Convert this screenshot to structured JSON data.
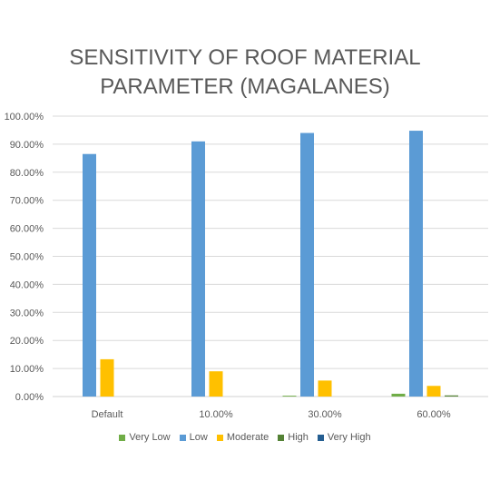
{
  "chart_data": {
    "type": "bar",
    "title_lines": [
      "SENSITIVITY OF ROOF MATERIAL",
      "PARAMETER (MAGALANES)"
    ],
    "categories": [
      "Default",
      "10.00%",
      "30.00%",
      "60.00%"
    ],
    "series": [
      {
        "name": "Very Low",
        "color": "#70ad47",
        "values": [
          0.0,
          0.0,
          0.3,
          1.0
        ]
      },
      {
        "name": "Low",
        "color": "#5b9bd5",
        "values": [
          86.5,
          91.0,
          94.0,
          94.8
        ]
      },
      {
        "name": "Moderate",
        "color": "#ffc000",
        "values": [
          13.3,
          9.0,
          5.7,
          3.8
        ]
      },
      {
        "name": "High",
        "color": "#548235",
        "values": [
          0.0,
          0.0,
          0.0,
          0.4
        ]
      },
      {
        "name": "Very High",
        "color": "#255e91",
        "values": [
          0.0,
          0.0,
          0.0,
          0.0
        ]
      }
    ],
    "ylim": [
      0,
      100
    ],
    "y_ticks": [
      "0.00%",
      "10.00%",
      "20.00%",
      "30.00%",
      "40.00%",
      "50.00%",
      "60.00%",
      "70.00%",
      "80.00%",
      "90.00%",
      "100.00%"
    ],
    "grid": "horizontal",
    "legend_position": "bottom",
    "xlabel": "",
    "ylabel": ""
  }
}
